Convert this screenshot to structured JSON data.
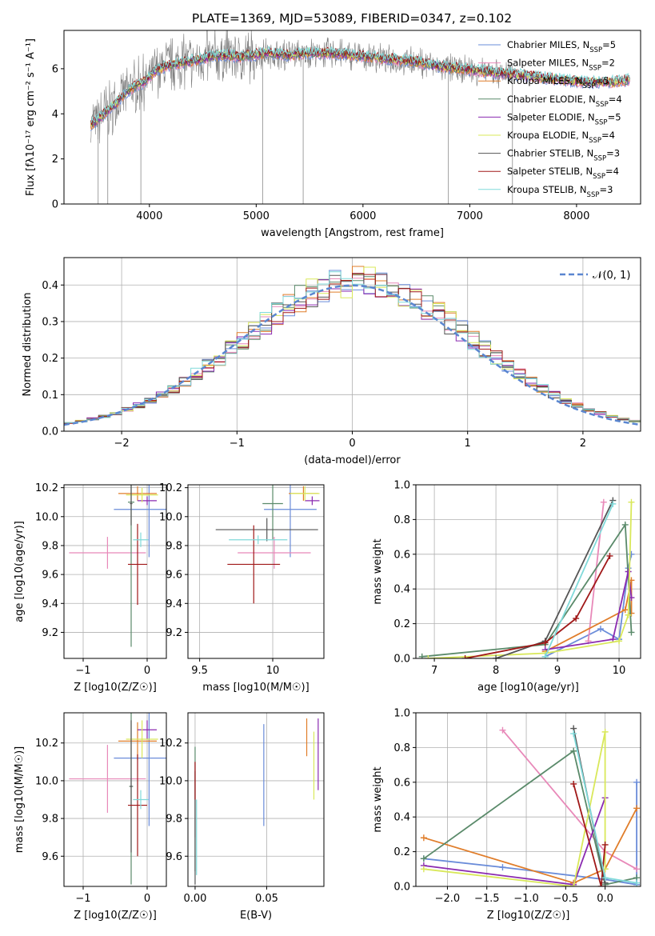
{
  "title": "PLATE=1369, MJD=53089, FIBERID=0347, z=0.102",
  "colors": {
    "Chabrier MILES": "#6a8cd9",
    "Salpeter MILES": "#e889b9",
    "Kroupa MILES": "#e07d2a",
    "Chabrier ELODIE": "#5a8a6a",
    "Salpeter ELODIE": "#8a2ab0",
    "Kroupa ELODIE": "#d9e85a",
    "Chabrier STELIB": "#555555",
    "Salpeter STELIB": "#a01818",
    "Kroupa STELIB": "#80dada"
  },
  "legend_names": [
    "Chabrier MILES",
    "Salpeter MILES",
    "Kroupa MILES",
    "Chabrier ELODIE",
    "Salpeter ELODIE",
    "Kroupa ELODIE",
    "Chabrier STELIB",
    "Salpeter STELIB",
    "Kroupa STELIB"
  ],
  "legend_nssp": [
    "5",
    "2",
    "5",
    "4",
    "5",
    "4",
    "3",
    "4",
    "3"
  ],
  "nssp_label": "N",
  "nssp_sub": "SSP",
  "chart_data": [
    {
      "type": "line",
      "id": "spectrum",
      "xlabel": "wavelength [Angstrom, rest frame]",
      "ylabel": "Flux [f",
      "ylabel_full": "Flux [fλ10⁻¹⁷ erg cm⁻² s⁻¹ A⁻¹]",
      "xlim": [
        3200,
        8600
      ],
      "ylim": [
        0,
        7.7
      ],
      "xticks": [
        4000,
        5000,
        6000,
        7000,
        8000
      ],
      "yticks": [
        0,
        2,
        4,
        6
      ],
      "x": [
        3450,
        3550,
        3650,
        3750,
        3850,
        3950,
        4050,
        4150,
        4250,
        4350,
        4450,
        4550,
        4650,
        4750,
        4850,
        4950,
        5100,
        5300,
        5500,
        5700,
        5900,
        6100,
        6300,
        6500,
        6700,
        6900,
        7100,
        7300,
        7500,
        7700,
        7900,
        8100,
        8300,
        8500
      ],
      "y": [
        3.5,
        3.9,
        4.3,
        4.8,
        5.2,
        5.4,
        5.9,
        6.1,
        6.2,
        6.3,
        6.4,
        6.5,
        6.6,
        6.6,
        6.5,
        6.6,
        6.7,
        6.6,
        6.7,
        6.7,
        6.6,
        6.5,
        6.4,
        6.3,
        6.1,
        6.0,
        5.9,
        5.8,
        5.7,
        5.6,
        5.5,
        5.4,
        5.4,
        5.5
      ]
    },
    {
      "type": "bar",
      "id": "residuals",
      "xlabel": "(data-model)/error",
      "ylabel": "Normed distribution",
      "legend": "𝒩(0, 1)",
      "xlim": [
        -2.5,
        2.5
      ],
      "ylim": [
        0,
        0.475
      ],
      "xticks": [
        -2,
        -1,
        0,
        1,
        2
      ],
      "yticks": [
        0.0,
        0.1,
        0.2,
        0.3,
        0.4
      ],
      "bin_edges_start": -2.5,
      "bin_width": 0.1
    },
    {
      "type": "scatter",
      "id": "age-vs-Z",
      "xlabel": "Z [log10(Z/Z☉)]",
      "ylabel": "age [log10(age/yr)]",
      "xlim": [
        -1.3,
        0.3
      ],
      "ylim": [
        9.02,
        10.22
      ],
      "xticks": [
        -1,
        0
      ],
      "yticks": [
        9.2,
        9.4,
        9.6,
        9.8,
        10.0,
        10.2
      ],
      "points": [
        {
          "series": "Chabrier MILES",
          "x": 0.03,
          "y": 10.05,
          "xerr": 0.55,
          "yerr": 0.33
        },
        {
          "series": "Salpeter MILES",
          "x": -0.62,
          "y": 9.75,
          "xerr": 0.6,
          "yerr": 0.11
        },
        {
          "series": "Kroupa MILES",
          "x": -0.15,
          "y": 10.16,
          "xerr": 0.3,
          "yerr": 0.05
        },
        {
          "series": "Chabrier ELODIE",
          "x": -0.25,
          "y": 10.1,
          "xerr": 0.05,
          "yerr": 1.0
        },
        {
          "series": "Salpeter ELODIE",
          "x": 0.0,
          "y": 10.11,
          "xerr": 0.15,
          "yerr": 0.03
        },
        {
          "series": "Kroupa ELODIE",
          "x": -0.08,
          "y": 10.15,
          "xerr": 0.25,
          "yerr": 0.05
        },
        {
          "series": "Chabrier STELIB",
          "x": -0.25,
          "y": 10.09,
          "xerr": 0.02,
          "yerr": 0.15
        },
        {
          "series": "Salpeter STELIB",
          "x": -0.15,
          "y": 9.67,
          "xerr": 0.15,
          "yerr": 0.28
        },
        {
          "series": "Kroupa STELIB",
          "x": -0.1,
          "y": 9.84,
          "xerr": 0.12,
          "yerr": 0.05
        }
      ]
    },
    {
      "type": "scatter",
      "id": "age-vs-mass",
      "xlabel": "mass [log10(M/M☉)]",
      "ylabel": "",
      "xlim": [
        9.42,
        10.35
      ],
      "ylim": [
        9.02,
        10.22
      ],
      "xticks": [
        9.5,
        10.0
      ],
      "yticks": [
        9.2,
        9.4,
        9.6,
        9.8,
        10.0,
        10.2
      ],
      "points": [
        {
          "series": "Chabrier MILES",
          "x": 10.12,
          "y": 10.05,
          "xerr": 0.18,
          "yerr": 0.33
        },
        {
          "series": "Salpeter MILES",
          "x": 10.01,
          "y": 9.75,
          "xerr": 0.25,
          "yerr": 0.11
        },
        {
          "series": "Kroupa MILES",
          "x": 10.21,
          "y": 10.16,
          "xerr": 0.1,
          "yerr": 0.05
        },
        {
          "series": "Chabrier ELODIE",
          "x": 10.0,
          "y": 10.09,
          "xerr": 0.07,
          "yerr": 0.25
        },
        {
          "series": "Salpeter ELODIE",
          "x": 10.27,
          "y": 10.11,
          "xerr": 0.05,
          "yerr": 0.03
        },
        {
          "series": "Kroupa ELODIE",
          "x": 10.22,
          "y": 10.16,
          "xerr": 0.1,
          "yerr": 0.05
        },
        {
          "series": "Chabrier STELIB",
          "x": 9.96,
          "y": 9.91,
          "xerr": 0.35,
          "yerr": 0.08
        },
        {
          "series": "Salpeter STELIB",
          "x": 9.87,
          "y": 9.67,
          "xerr": 0.18,
          "yerr": 0.27
        },
        {
          "series": "Kroupa STELIB",
          "x": 9.9,
          "y": 9.84,
          "xerr": 0.2,
          "yerr": 0.03
        }
      ]
    },
    {
      "type": "line",
      "id": "weight-vs-age",
      "xlabel": "age [log10(age/yr)]",
      "ylabel": "mass weight",
      "xlim": [
        6.7,
        10.35
      ],
      "ylim": [
        0,
        1.0
      ],
      "xticks": [
        7,
        8,
        9,
        10
      ],
      "yticks": [
        0.0,
        0.2,
        0.4,
        0.6,
        0.8,
        1.0
      ],
      "series": [
        {
          "name": "Chabrier MILES",
          "x": [
            8.8,
            9.7,
            10.0,
            10.15,
            10.2
          ],
          "y": [
            0.01,
            0.17,
            0.11,
            0.52,
            0.6
          ]
        },
        {
          "name": "Salpeter MILES",
          "x": [
            9.5,
            9.75
          ],
          "y": [
            0.1,
            0.9
          ]
        },
        {
          "name": "Kroupa MILES",
          "x": [
            8.8,
            10.1,
            10.2,
            10.2
          ],
          "y": [
            0.04,
            0.28,
            0.45,
            0.26
          ]
        },
        {
          "name": "Chabrier ELODIE",
          "x": [
            6.8,
            8.8,
            10.1,
            10.2
          ],
          "y": [
            0.01,
            0.08,
            0.77,
            0.15
          ]
        },
        {
          "name": "Salpeter ELODIE",
          "x": [
            8.8,
            9.9,
            10.15,
            10.2
          ],
          "y": [
            0.05,
            0.11,
            0.5,
            0.35
          ]
        },
        {
          "name": "Kroupa ELODIE",
          "x": [
            6.9,
            8.8,
            10.0,
            10.15,
            10.2
          ],
          "y": [
            0.0,
            0.03,
            0.1,
            0.25,
            0.9
          ]
        },
        {
          "name": "Chabrier STELIB",
          "x": [
            8.0,
            8.8,
            9.9
          ],
          "y": [
            0.0,
            0.1,
            0.91
          ]
        },
        {
          "name": "Salpeter STELIB",
          "x": [
            7.5,
            8.8,
            9.3,
            9.85
          ],
          "y": [
            0.0,
            0.09,
            0.23,
            0.59
          ]
        },
        {
          "name": "Kroupa STELIB",
          "x": [
            8.8,
            9.9
          ],
          "y": [
            0.01,
            0.89
          ]
        }
      ]
    },
    {
      "type": "scatter",
      "id": "mass-vs-Z",
      "xlabel": "Z [log10(Z/Z☉)]",
      "ylabel": "mass [log10(M/M☉)]",
      "xlim": [
        -1.3,
        0.3
      ],
      "ylim": [
        9.44,
        10.36
      ],
      "xticks": [
        -1,
        0
      ],
      "yticks": [
        9.6,
        9.8,
        10.0,
        10.2
      ],
      "points": [
        {
          "series": "Chabrier MILES",
          "x": 0.03,
          "y": 10.12,
          "xerr": 0.55,
          "yerr": 0.36
        },
        {
          "series": "Salpeter MILES",
          "x": -0.62,
          "y": 10.01,
          "xerr": 0.6,
          "yerr": 0.18
        },
        {
          "series": "Kroupa MILES",
          "x": -0.15,
          "y": 10.21,
          "xerr": 0.3,
          "yerr": 0.1
        },
        {
          "series": "Chabrier ELODIE",
          "x": -0.25,
          "y": 9.97,
          "xerr": 0.03,
          "yerr": 0.52
        },
        {
          "series": "Salpeter ELODIE",
          "x": 0.0,
          "y": 10.27,
          "xerr": 0.15,
          "yerr": 0.05
        },
        {
          "series": "Kroupa ELODIE",
          "x": -0.08,
          "y": 10.22,
          "xerr": 0.25,
          "yerr": 0.1
        },
        {
          "series": "Chabrier STELIB",
          "x": -0.25,
          "y": 9.97,
          "xerr": 0.02,
          "yerr": 0.35
        },
        {
          "series": "Salpeter STELIB",
          "x": -0.15,
          "y": 9.87,
          "xerr": 0.15,
          "yerr": 0.27
        },
        {
          "series": "Kroupa STELIB",
          "x": -0.1,
          "y": 9.9,
          "xerr": 0.12,
          "yerr": 0.05
        }
      ]
    },
    {
      "type": "scatter",
      "id": "mass-vs-EBV",
      "xlabel": "E(B-V)",
      "ylabel": "",
      "xlim": [
        -0.005,
        0.09
      ],
      "ylim": [
        9.44,
        10.36
      ],
      "xticks": [
        0.0,
        0.05
      ],
      "yticks": [
        9.6,
        9.8,
        10.0,
        10.2
      ],
      "points": [
        {
          "series": "Chabrier MILES",
          "x": 0.048,
          "y": 10.03,
          "yerr": 0.27
        },
        {
          "series": "Salpeter MILES",
          "x": 0.0,
          "y": 9.9,
          "yerr": 0.2
        },
        {
          "series": "Kroupa MILES",
          "x": 0.078,
          "y": 10.23,
          "yerr": 0.1
        },
        {
          "series": "Chabrier ELODIE",
          "x": 0.0,
          "y": 9.85,
          "yerr": 0.33
        },
        {
          "series": "Salpeter ELODIE",
          "x": 0.086,
          "y": 10.14,
          "yerr": 0.19
        },
        {
          "series": "Kroupa ELODIE",
          "x": 0.083,
          "y": 10.08,
          "yerr": 0.18
        },
        {
          "series": "Chabrier STELIB",
          "x": 0.0,
          "y": 9.75,
          "yerr": 0.3
        },
        {
          "series": "Salpeter STELIB",
          "x": 0.0,
          "y": 10.0,
          "yerr": 0.1
        },
        {
          "series": "Kroupa STELIB",
          "x": 0.001,
          "y": 9.7,
          "yerr": 0.2
        }
      ]
    },
    {
      "type": "line",
      "id": "weight-vs-Z",
      "xlabel": "Z [log10(Z/Z☉)]",
      "ylabel": "mass weight",
      "xlim": [
        -2.4,
        0.45
      ],
      "ylim": [
        0,
        1.0
      ],
      "xticks": [
        -2.0,
        -1.5,
        -1.0,
        -0.5,
        0.0
      ],
      "yticks": [
        0.0,
        0.2,
        0.4,
        0.6,
        0.8,
        1.0
      ],
      "series": [
        {
          "name": "Chabrier MILES",
          "x": [
            -2.3,
            -1.3,
            0.0,
            0.4,
            0.4
          ],
          "y": [
            0.16,
            0.11,
            0.04,
            0.01,
            0.6
          ]
        },
        {
          "name": "Salpeter MILES",
          "x": [
            -1.3,
            0.0,
            0.4
          ],
          "y": [
            0.9,
            0.2,
            0.1
          ]
        },
        {
          "name": "Kroupa MILES",
          "x": [
            -2.3,
            -0.4,
            0.0,
            0.4
          ],
          "y": [
            0.28,
            0.02,
            0.1,
            0.45
          ]
        },
        {
          "name": "Chabrier ELODIE",
          "x": [
            -2.3,
            -0.4,
            0.0,
            0.4
          ],
          "y": [
            0.16,
            0.78,
            0.01,
            0.05
          ]
        },
        {
          "name": "Salpeter ELODIE",
          "x": [
            -2.3,
            -0.4,
            0.0
          ],
          "y": [
            0.12,
            0.01,
            0.51
          ]
        },
        {
          "name": "Kroupa ELODIE",
          "x": [
            -2.3,
            -0.4,
            0.0,
            0.0
          ],
          "y": [
            0.1,
            0.0,
            0.89,
            0.1
          ]
        },
        {
          "name": "Chabrier STELIB",
          "x": [
            -0.4,
            0.0
          ],
          "y": [
            0.91,
            0.02
          ]
        },
        {
          "name": "Salpeter STELIB",
          "x": [
            -0.4,
            -0.05,
            0.0
          ],
          "y": [
            0.59,
            0.0,
            0.24
          ]
        },
        {
          "name": "Kroupa STELIB",
          "x": [
            -0.4,
            0.0,
            0.4
          ],
          "y": [
            0.88,
            0.05,
            0.02
          ]
        }
      ]
    }
  ]
}
